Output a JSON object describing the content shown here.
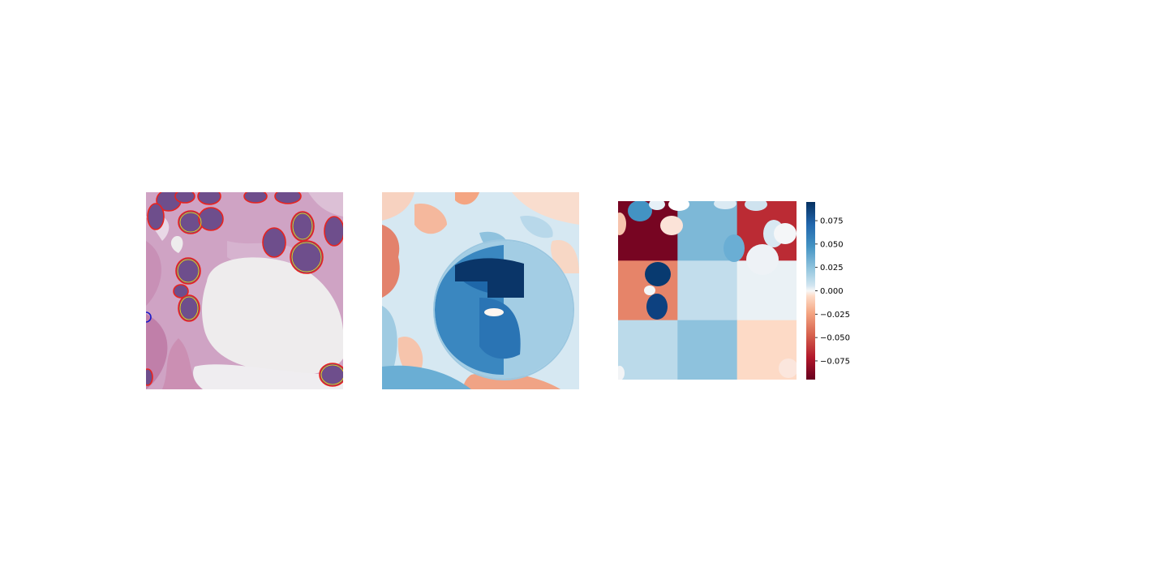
{
  "figure": {
    "panels": [
      {
        "id": "histology-image",
        "description_kind": "stained tissue with nucleus contours"
      },
      {
        "id": "attribution-map",
        "description_kind": "pixel-level attribution map"
      },
      {
        "id": "grid-attribution-map",
        "description_kind": "3x3 patch attribution overlay"
      }
    ]
  },
  "chart_data": {
    "type": "heatmap",
    "colormap": "RdBu",
    "vmin": -0.095,
    "vmax": 0.095,
    "grid_values": [
      [
        -0.09,
        0.03,
        -0.065
      ],
      [
        -0.035,
        0.01,
        0.002
      ],
      [
        0.012,
        0.025,
        -0.006
      ]
    ],
    "colorbar": {
      "ticks": [
        0.075,
        0.05,
        0.025,
        0.0,
        -0.025,
        -0.05,
        -0.075
      ],
      "tick_labels": [
        "0.075",
        "0.050",
        "0.025",
        "0.000",
        "−0.025",
        "−0.050",
        "−0.075"
      ]
    }
  },
  "colors": {
    "dark_red": "#67001f",
    "mid_red": "#d6604d",
    "light_red": "#f4a582",
    "pale_red": "#fddbc7",
    "white": "#f7f7f7",
    "pale_blue": "#d1e5f0",
    "light_blue": "#92c5de",
    "mid_blue": "#4393c3",
    "dark_blue": "#053061"
  }
}
